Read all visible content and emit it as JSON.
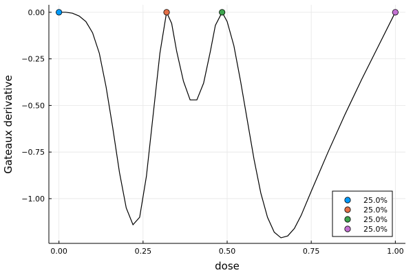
{
  "chart_data": {
    "type": "line",
    "xlabel": "dose",
    "ylabel": "Gateaux derivative",
    "xlim": [
      -0.03,
      1.03
    ],
    "ylim": [
      -1.24,
      0.04
    ],
    "grid": true,
    "x_ticks": [
      0.0,
      0.25,
      0.5,
      0.75,
      1.0
    ],
    "x_tick_labels": [
      "0.00",
      "0.25",
      "0.50",
      "0.75",
      "1.00"
    ],
    "y_ticks": [
      0.0,
      -0.25,
      -0.5,
      -0.75,
      -1.0
    ],
    "y_tick_labels": [
      "0.00",
      "−0.25",
      "−0.50",
      "−0.75",
      "−1.00"
    ],
    "legend_position": "bottom-right",
    "line": {
      "color": "#000000",
      "points": [
        [
          0.0,
          0.0
        ],
        [
          0.02,
          0.0
        ],
        [
          0.04,
          -0.005
        ],
        [
          0.06,
          -0.02
        ],
        [
          0.08,
          -0.05
        ],
        [
          0.1,
          -0.11
        ],
        [
          0.12,
          -0.22
        ],
        [
          0.14,
          -0.4
        ],
        [
          0.16,
          -0.62
        ],
        [
          0.18,
          -0.86
        ],
        [
          0.2,
          -1.05
        ],
        [
          0.22,
          -1.14
        ],
        [
          0.24,
          -1.1
        ],
        [
          0.26,
          -0.88
        ],
        [
          0.28,
          -0.55
        ],
        [
          0.3,
          -0.22
        ],
        [
          0.32,
          0.0
        ],
        [
          0.335,
          -0.06
        ],
        [
          0.35,
          -0.21
        ],
        [
          0.37,
          -0.37
        ],
        [
          0.39,
          -0.47
        ],
        [
          0.41,
          -0.47
        ],
        [
          0.43,
          -0.38
        ],
        [
          0.45,
          -0.21
        ],
        [
          0.465,
          -0.07
        ],
        [
          0.485,
          0.0
        ],
        [
          0.5,
          -0.05
        ],
        [
          0.52,
          -0.18
        ],
        [
          0.54,
          -0.37
        ],
        [
          0.56,
          -0.58
        ],
        [
          0.58,
          -0.79
        ],
        [
          0.6,
          -0.97
        ],
        [
          0.62,
          -1.1
        ],
        [
          0.64,
          -1.18
        ],
        [
          0.66,
          -1.21
        ],
        [
          0.68,
          -1.2
        ],
        [
          0.7,
          -1.16
        ],
        [
          0.72,
          -1.09
        ],
        [
          0.75,
          -0.96
        ],
        [
          0.8,
          -0.75
        ],
        [
          0.85,
          -0.55
        ],
        [
          0.9,
          -0.36
        ],
        [
          0.95,
          -0.18
        ],
        [
          1.0,
          0.0
        ]
      ]
    },
    "series": [
      {
        "name": "25.0%",
        "x": [
          0.0
        ],
        "values": [
          0.0
        ],
        "color": "#009AFA"
      },
      {
        "name": "25.0%",
        "x": [
          0.32
        ],
        "values": [
          0.0
        ],
        "color": "#E36F47"
      },
      {
        "name": "25.0%",
        "x": [
          0.485
        ],
        "values": [
          0.0
        ],
        "color": "#3EA44E"
      },
      {
        "name": "25.0%",
        "x": [
          1.0
        ],
        "values": [
          0.0
        ],
        "color": "#C371D2"
      }
    ]
  }
}
